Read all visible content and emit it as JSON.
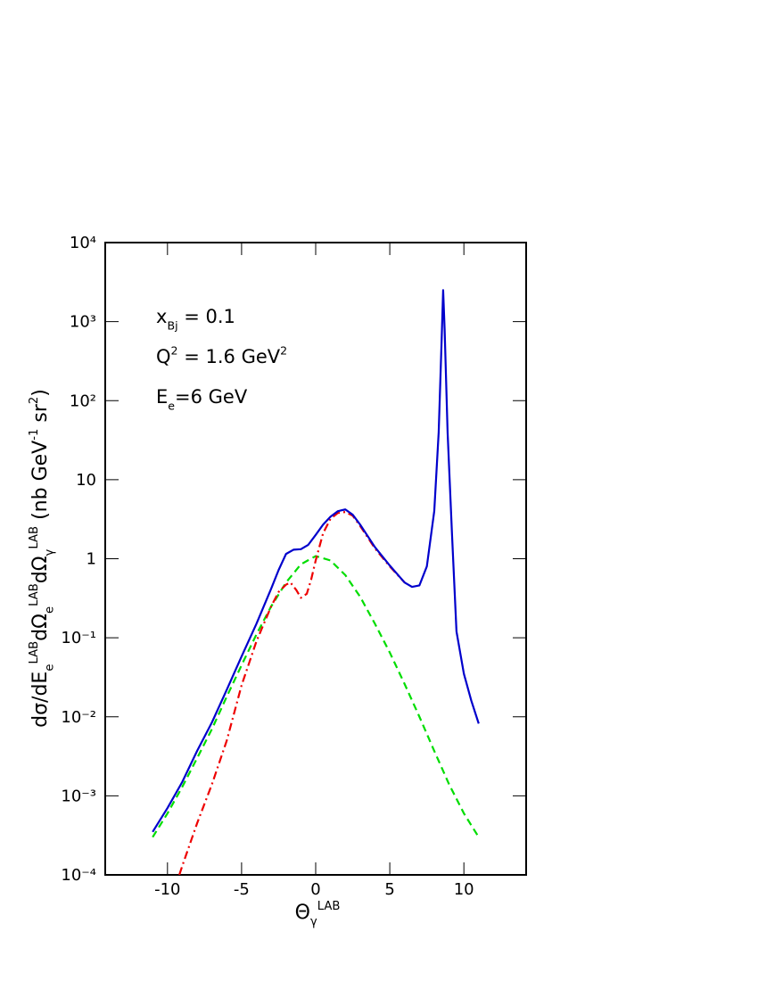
{
  "chart_data": {
    "type": "line",
    "log_y": true,
    "xlim": [
      -14.2,
      14.2
    ],
    "ylim": [
      0.0001,
      10000
    ],
    "xticks": [
      -10,
      -5,
      0,
      5,
      10
    ],
    "yticks": [
      {
        "value": 0.0001,
        "label": "10⁻⁴"
      },
      {
        "value": 0.001,
        "label": "10⁻³"
      },
      {
        "value": 0.01,
        "label": "10⁻²"
      },
      {
        "value": 0.1,
        "label": "10⁻¹"
      },
      1,
      10,
      {
        "value": 100,
        "label": "10²"
      },
      {
        "value": 1000,
        "label": "10³"
      },
      {
        "value": 10000,
        "label": "10⁴"
      }
    ],
    "x_label": [
      {
        "text": "Θ"
      },
      {
        "text": "γ",
        "shift": "sub"
      },
      {
        "text": "LAB",
        "shift": "sup"
      }
    ],
    "y_label": [
      {
        "text": "dσ/dE"
      },
      {
        "text": "e",
        "shift": "sub"
      },
      {
        "text": "LAB",
        "shift": "sup"
      },
      {
        "text": "dΩ"
      },
      {
        "text": "e",
        "shift": "sub"
      },
      {
        "text": "LAB",
        "shift": "sup"
      },
      {
        "text": "dΩ"
      },
      {
        "text": "γ",
        "shift": "sub"
      },
      {
        "text": "LAB",
        "shift": "sup"
      },
      {
        "text": " (nb GeV"
      },
      {
        "text": "-1",
        "shift": "sup"
      },
      {
        "text": " sr"
      },
      {
        "text": "2",
        "shift": "sup"
      },
      {
        "text": ")"
      }
    ],
    "annotations": [
      [
        {
          "text": "x"
        },
        {
          "text": "Bj",
          "shift": "sub"
        },
        {
          "text": " = 0.1"
        }
      ],
      [
        {
          "text": "Q"
        },
        {
          "text": "2",
          "shift": "sup"
        },
        {
          "text": " = 1.6 GeV"
        },
        {
          "text": "2",
          "shift": "sup"
        }
      ],
      [
        {
          "text": "E"
        },
        {
          "text": "e",
          "shift": "sub"
        },
        {
          "text": "=6 GeV"
        }
      ]
    ],
    "series": [
      {
        "color": "#0000cc",
        "style": "solid",
        "x": [
          -11,
          -10,
          -9,
          -8,
          -7,
          -6,
          -5,
          -4,
          -3,
          -2.5,
          -2,
          -1.5,
          -1,
          -0.5,
          0,
          0.5,
          1,
          1.5,
          2,
          2.5,
          3,
          4,
          5,
          6,
          6.5,
          7,
          7.5,
          8,
          8.3,
          8.5,
          8.6,
          8.7,
          8.9,
          9.2,
          9.5,
          10,
          10.5,
          11
        ],
        "values": [
          0.00035,
          0.0007,
          0.0015,
          0.0037,
          0.0085,
          0.022,
          0.058,
          0.15,
          0.42,
          0.72,
          1.15,
          1.3,
          1.32,
          1.5,
          2.0,
          2.7,
          3.4,
          4.0,
          4.2,
          3.6,
          2.7,
          1.4,
          0.82,
          0.5,
          0.44,
          0.46,
          0.8,
          4,
          40,
          600,
          2500,
          800,
          40,
          2,
          0.12,
          0.035,
          0.016,
          0.0082
        ]
      },
      {
        "color": "#00dd00",
        "style": "dashed",
        "x": [
          -11,
          -10,
          -9,
          -8,
          -7,
          -6,
          -5,
          -4,
          -3,
          -2,
          -1,
          0,
          1,
          2,
          3,
          4,
          5,
          6,
          7,
          8,
          9,
          10,
          11
        ],
        "values": [
          0.0003,
          0.0006,
          0.0013,
          0.003,
          0.007,
          0.018,
          0.045,
          0.11,
          0.25,
          0.5,
          0.85,
          1.08,
          0.95,
          0.62,
          0.33,
          0.15,
          0.065,
          0.026,
          0.01,
          0.0037,
          0.0014,
          0.0006,
          0.0003
        ]
      },
      {
        "color": "#ee0000",
        "style": "dashdot",
        "x": [
          -9.2,
          -9,
          -8,
          -7,
          -6,
          -5,
          -4,
          -3,
          -2.5,
          -2,
          -1.7,
          -1.3,
          -1,
          -0.6,
          -0.3,
          0,
          0.5,
          1,
          1.5,
          2,
          2.5,
          3,
          4,
          5,
          6
        ],
        "values": [
          0.0001,
          0.00013,
          0.00045,
          0.0014,
          0.005,
          0.025,
          0.09,
          0.25,
          0.38,
          0.47,
          0.5,
          0.4,
          0.32,
          0.36,
          0.55,
          0.95,
          2.1,
          3.2,
          3.8,
          3.9,
          3.5,
          2.6,
          1.35,
          0.8,
          0.5
        ]
      }
    ]
  }
}
